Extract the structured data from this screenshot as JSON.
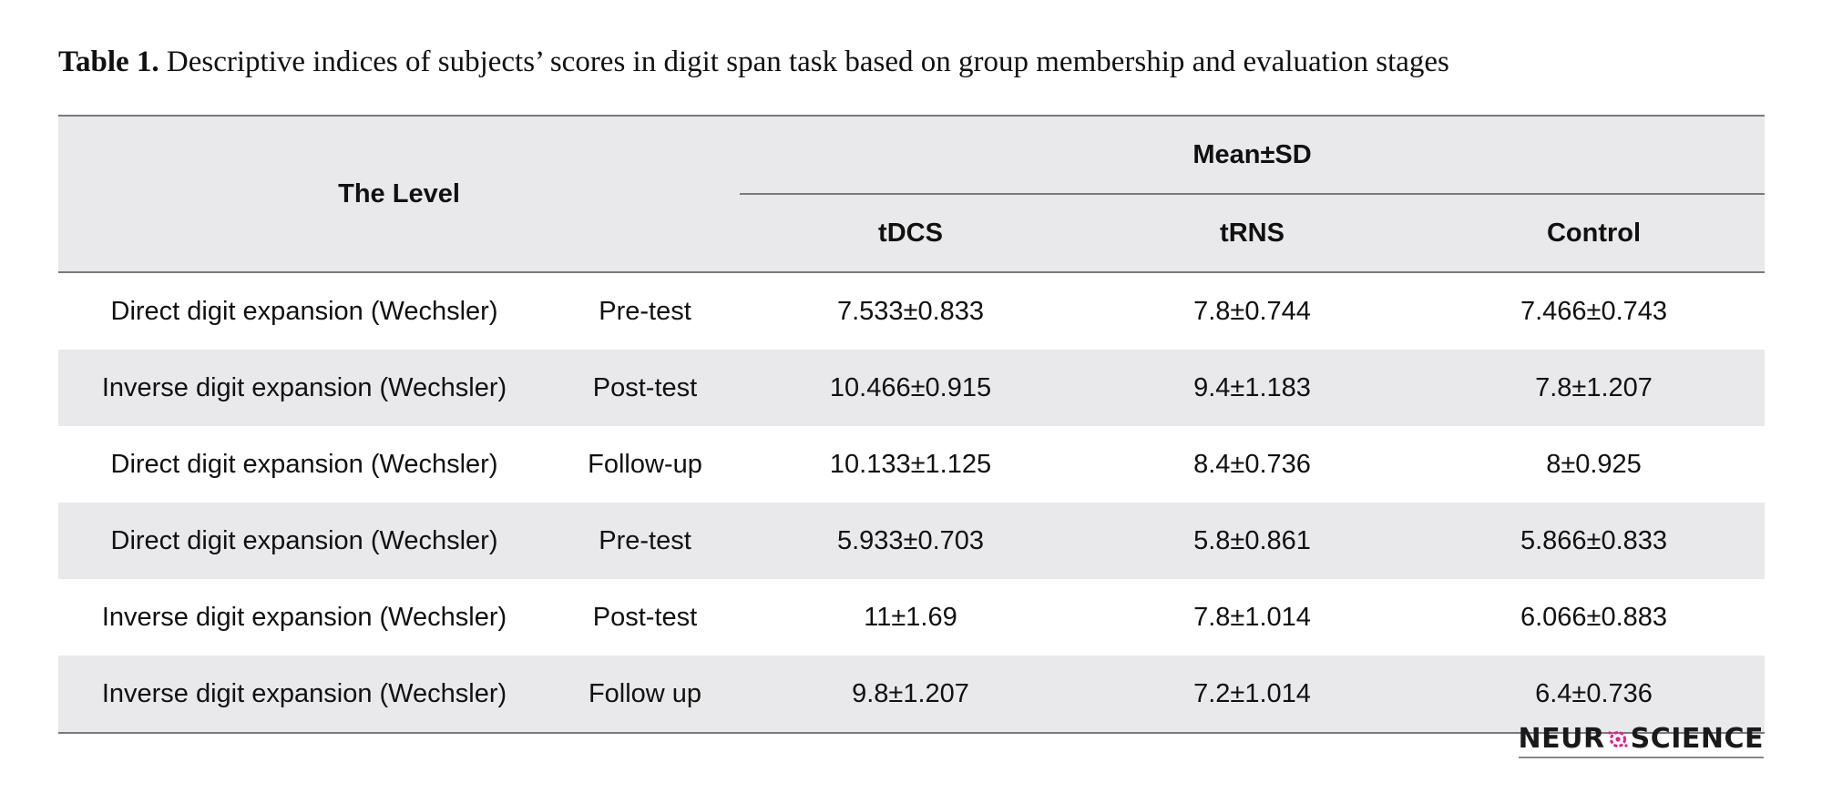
{
  "caption": {
    "label": "Table 1.",
    "text": "Descriptive indices of subjects’ scores in digit span task based on group membership and evaluation stages"
  },
  "table": {
    "header": {
      "level": "The Level",
      "group_header": "Mean±SD",
      "groups": [
        "tDCS",
        "tRNS",
        "Control"
      ]
    },
    "rows": [
      {
        "level": "Direct digit expansion (Wechsler)",
        "stage": "Pre-test",
        "tdcs": "7.533±0.833",
        "trns": "7.8±0.744",
        "control": "7.466±0.743"
      },
      {
        "level": "Inverse digit expansion (Wechsler)",
        "stage": "Post-test",
        "tdcs": "10.466±0.915",
        "trns": "9.4±1.183",
        "control": "7.8±1.207"
      },
      {
        "level": "Direct digit expansion (Wechsler)",
        "stage": "Follow-up",
        "tdcs": "10.133±1.125",
        "trns": "8.4±0.736",
        "control": "8±0.925"
      },
      {
        "level": "Direct digit expansion (Wechsler)",
        "stage": "Pre-test",
        "tdcs": "5.933±0.703",
        "trns": "5.8±0.861",
        "control": "5.866±0.833"
      },
      {
        "level": "Inverse digit expansion (Wechsler)",
        "stage": "Post-test",
        "tdcs": "11±1.69",
        "trns": "7.8±1.014",
        "control": "6.066±0.883"
      },
      {
        "level": "Inverse digit expansion (Wechsler)",
        "stage": "Follow up",
        "tdcs": "9.8±1.207",
        "trns": "7.2±1.014",
        "control": "6.4±0.736"
      }
    ]
  },
  "logo": {
    "left_text": "NEUR",
    "right_text": "SCIENCE",
    "mark_icon": "neuron-o-icon",
    "mark_color": "#e0218a"
  }
}
